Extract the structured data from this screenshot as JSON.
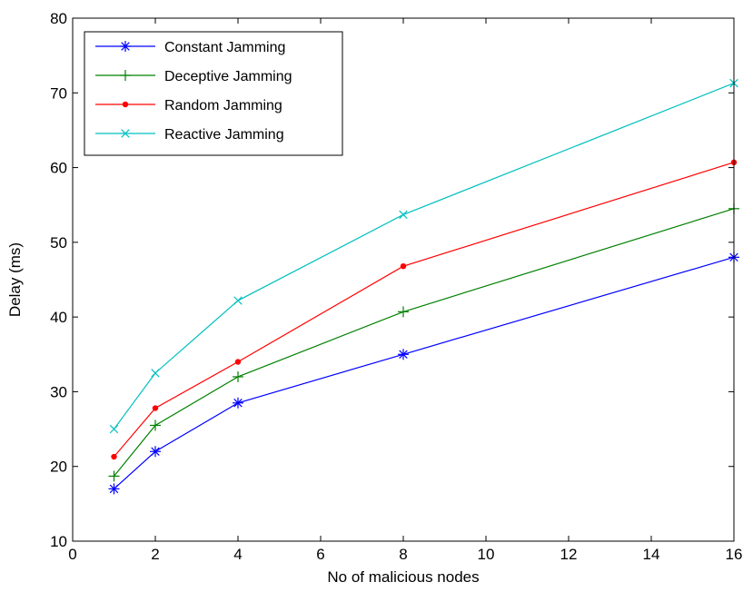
{
  "chart_data": {
    "type": "line",
    "title": "",
    "xlabel": "No of malicious nodes",
    "ylabel": "Delay (ms)",
    "xlim": [
      0,
      16
    ],
    "ylim": [
      10,
      80
    ],
    "xticks": [
      0,
      2,
      4,
      6,
      8,
      10,
      12,
      14,
      16
    ],
    "yticks": [
      10,
      20,
      30,
      40,
      50,
      60,
      70,
      80
    ],
    "grid": false,
    "legend_position": "top-left",
    "x": [
      1,
      2,
      4,
      8,
      16
    ],
    "series": [
      {
        "name": "Constant Jamming",
        "values": [
          17.0,
          22.0,
          28.5,
          35.0,
          48.0
        ],
        "color": "#0000ff",
        "marker": "asterisk"
      },
      {
        "name": "Deceptive Jamming",
        "values": [
          18.7,
          25.5,
          32.0,
          40.7,
          54.5
        ],
        "color": "#008000",
        "marker": "plus"
      },
      {
        "name": "Random Jamming",
        "values": [
          21.3,
          27.8,
          34.0,
          46.8,
          60.7
        ],
        "color": "#ff0000",
        "marker": "dot"
      },
      {
        "name": "Reactive Jamming",
        "values": [
          25.0,
          32.5,
          42.2,
          53.7,
          71.3
        ],
        "color": "#00bfbf",
        "marker": "x"
      }
    ]
  }
}
